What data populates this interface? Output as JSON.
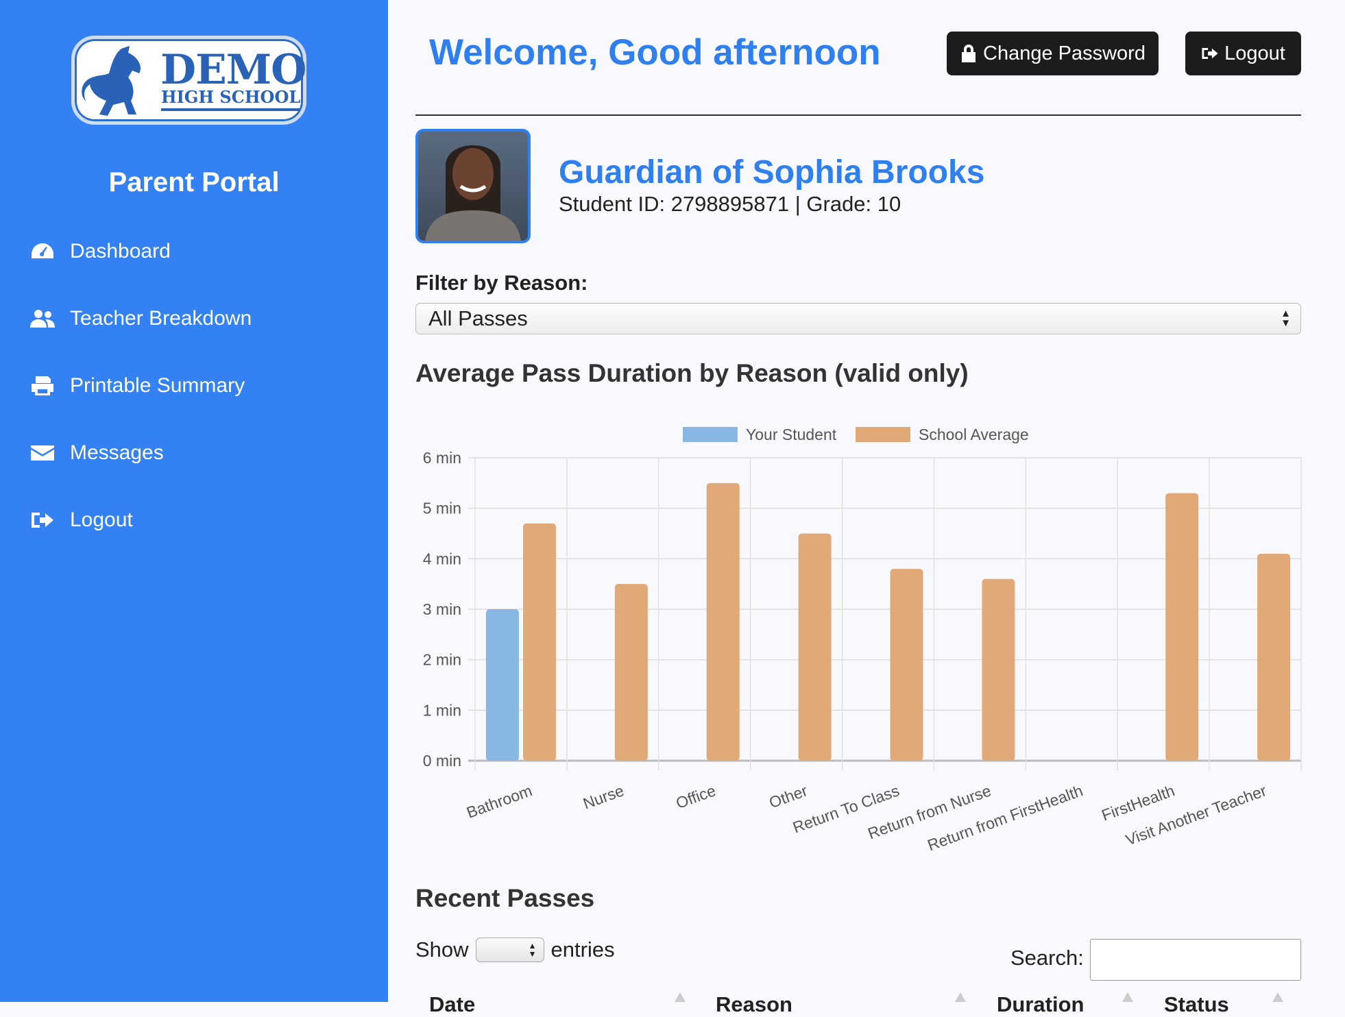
{
  "sidebar": {
    "logo_text": "DEMO",
    "logo_subtext": "HIGH SCHOOL",
    "title": "Parent Portal",
    "items": [
      {
        "label": "Dashboard",
        "icon": "tachometer-icon"
      },
      {
        "label": "Teacher Breakdown",
        "icon": "users-icon"
      },
      {
        "label": "Printable Summary",
        "icon": "printer-icon"
      },
      {
        "label": "Messages",
        "icon": "envelope-icon"
      },
      {
        "label": "Logout",
        "icon": "sign-out-icon"
      }
    ]
  },
  "header": {
    "welcome": "Welcome, Good afternoon",
    "change_password": "Change Password",
    "logout": "Logout"
  },
  "student": {
    "name": "Guardian of Sophia Brooks",
    "details": "Student ID: 2798895871 | Grade: 10"
  },
  "filter": {
    "label": "Filter by Reason:",
    "selected": "All Passes"
  },
  "chart_title": "Average Pass Duration by Reason (valid only)",
  "chart_data": {
    "type": "bar",
    "title": "Average Pass Duration by Reason (valid only)",
    "categories": [
      "Bathroom",
      "Nurse",
      "Office",
      "Other",
      "Return To Class",
      "Return from Nurse",
      "Return from FirstHealth",
      "FirstHealth",
      "Visit Another Teacher"
    ],
    "series": [
      {
        "name": "Your Student",
        "color": "#89b7e3",
        "values": [
          3,
          null,
          null,
          null,
          null,
          null,
          null,
          null,
          null
        ]
      },
      {
        "name": "School Average",
        "color": "#e2a978",
        "values": [
          4.7,
          3.5,
          5.5,
          4.5,
          3.8,
          3.6,
          null,
          5.3,
          4.1
        ]
      }
    ],
    "ylim": [
      0,
      6
    ],
    "yticks": [
      "0 min",
      "1 min",
      "2 min",
      "3 min",
      "4 min",
      "5 min",
      "6 min"
    ],
    "grid": true,
    "legend": "top"
  },
  "recent": {
    "title": "Recent Passes",
    "show": "Show",
    "entries": "entries",
    "search": "Search:",
    "columns": [
      "Date",
      "Reason",
      "Duration",
      "Status"
    ]
  },
  "colors": {
    "sidebar": "#3381f2",
    "accent": "#2f7ff0",
    "button": "#1c1c1e"
  }
}
